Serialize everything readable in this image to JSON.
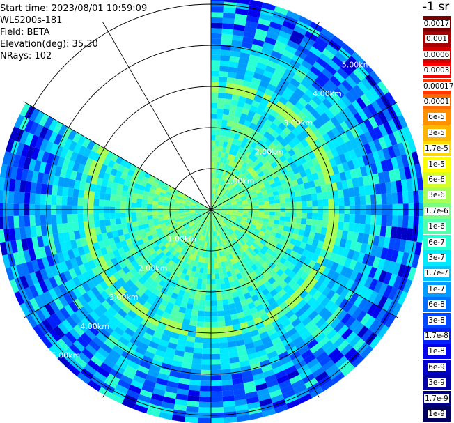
{
  "info": {
    "start_time": "Start time: 2023/08/01 10:59:09",
    "instrument": "WLS200s-181",
    "field": "Field: BETA",
    "elevation": "Elevation(deg): 35.30",
    "nrays": "NRays: 102"
  },
  "colorbar": {
    "unit": "-1 sr",
    "labels": [
      "0.0017",
      "0.001",
      "0.0006",
      "0.0003",
      "0.00017",
      "0.0001",
      "6e-5",
      "3e-5",
      "1.7e-5",
      "1e-5",
      "6e-6",
      "3e-6",
      "1.7e-6",
      "1e-6",
      "6e-7",
      "3e-7",
      "1.7e-7",
      "1e-7",
      "6e-8",
      "3e-8",
      "1.7e-8",
      "1e-8",
      "6e-9",
      "3e-9",
      "1.7e-9",
      "1e-9"
    ],
    "colors": [
      "#7a0000",
      "#a80000",
      "#d40000",
      "#ff0000",
      "#ff3800",
      "#ff6a00",
      "#ff9000",
      "#ffb400",
      "#ffd800",
      "#ffff00",
      "#d4ff2a",
      "#a8ff55",
      "#7cff80",
      "#52ffaa",
      "#2affd4",
      "#00eaff",
      "#00c4ff",
      "#009cff",
      "#0070ff",
      "#0048ff",
      "#0020ff",
      "#0000ee",
      "#0000c8",
      "#0000a4",
      "#00007c",
      "#000060"
    ]
  },
  "chart_data": {
    "type": "heatmap",
    "projection": "polar PPI",
    "range_labels_km": [
      "1.00km",
      "2.00km",
      "3.00km",
      "4.00km",
      "5.00km"
    ],
    "range_rings_km": [
      1,
      2,
      3,
      4,
      5
    ],
    "max_range_km": 5.2,
    "azimuth_spokes_deg": [
      0,
      30,
      60,
      90,
      120,
      150,
      180,
      210,
      240,
      270,
      300,
      330
    ],
    "missing_sector_deg": [
      300,
      360
    ],
    "background_level": "3e-8",
    "enhanced_ring_km": 2.9,
    "enhanced_ring_level": "1e-6",
    "near_field_level": "1.7e-6",
    "near_field_radius_km": 1.3
  }
}
